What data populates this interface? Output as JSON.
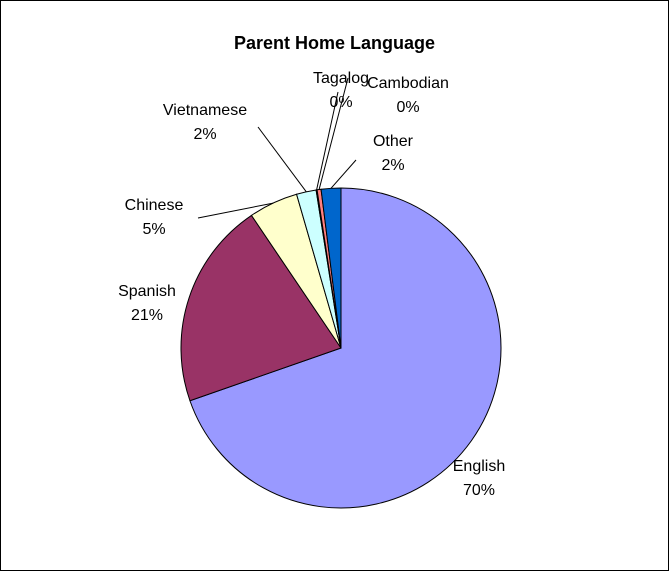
{
  "chart_data": {
    "type": "pie",
    "title": "Parent Home Language",
    "categories": [
      "English",
      "Spanish",
      "Chinese",
      "Vietnamese",
      "Tagalog",
      "Cambodian",
      "Other"
    ],
    "values": [
      70,
      21,
      5,
      2,
      0.1,
      0.4,
      2
    ],
    "percent_labels": [
      "70%",
      "21%",
      "5%",
      "2%",
      "0%",
      "0%",
      "2%"
    ],
    "colors": [
      "#9999ff",
      "#993366",
      "#ffffcc",
      "#ccffff",
      "#660066",
      "#ff8080",
      "#0066cc"
    ],
    "legend": "none",
    "start_angle_deg": 0,
    "direction": "clockwise"
  }
}
